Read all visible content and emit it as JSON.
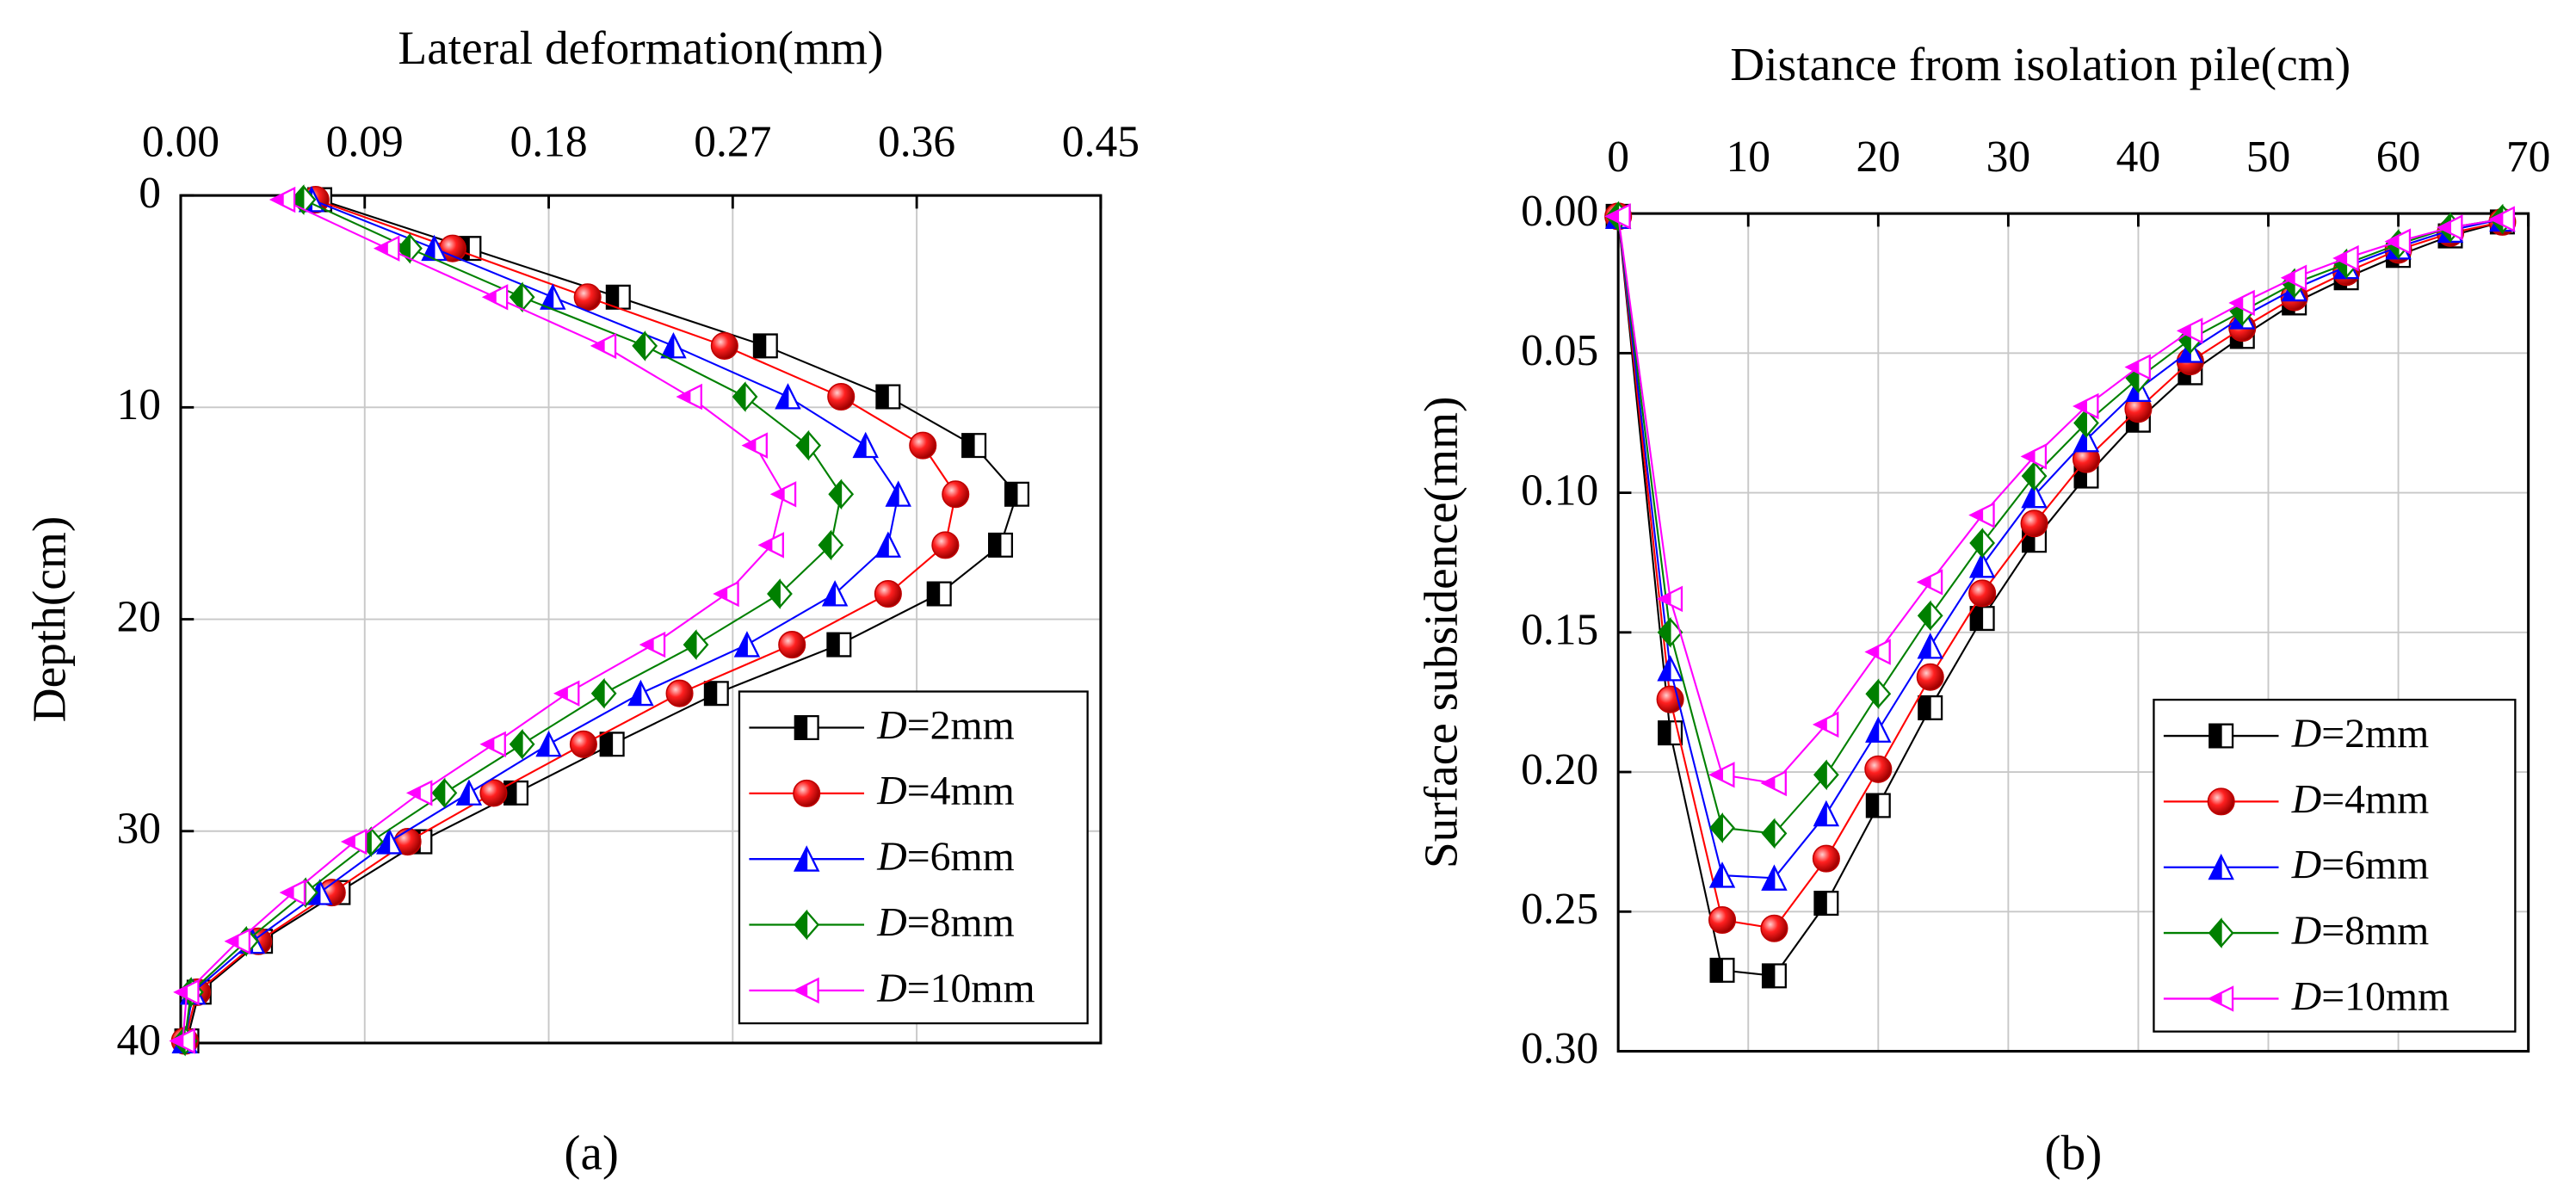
{
  "charts": [
    {
      "chart_data": {
        "type": "line",
        "caption": "(a)",
        "x_label": "Lateral deformation(mm)",
        "y_label": "Depth(cm)",
        "x_axis_position": "top",
        "y_inverted": true,
        "xlim": [
          0,
          0.45
        ],
        "xticks": [
          {
            "value": 0,
            "label": "0.00"
          },
          0.09,
          0.18,
          0.27,
          0.36,
          0.45
        ],
        "ylim": [
          0,
          40
        ],
        "yticks": [
          0,
          10,
          20,
          30,
          40
        ],
        "grid": true,
        "legend": "lower right",
        "y": [
          0.2,
          2.5,
          4.8,
          7.1,
          9.5,
          11.8,
          14.1,
          16.5,
          18.8,
          21.2,
          23.5,
          25.9,
          28.2,
          30.5,
          32.9,
          35.2,
          37.6,
          39.9
        ],
        "series": [
          {
            "name": "D=2mm",
            "color": "#000000",
            "marker": "square",
            "values": [
              0.068,
              0.141,
              0.214,
              0.286,
              0.346,
              0.388,
              0.409,
              0.401,
              0.371,
              0.322,
              0.262,
              0.211,
              0.164,
              0.117,
              0.077,
              0.039,
              0.009,
              0.003
            ]
          },
          {
            "name": "D=4mm",
            "color": "#ff0000",
            "marker": "sphere",
            "values": [
              0.066,
              0.133,
              0.199,
              0.266,
              0.323,
              0.363,
              0.379,
              0.374,
              0.346,
              0.299,
              0.244,
              0.197,
              0.153,
              0.111,
              0.074,
              0.038,
              0.008,
              0.002
            ]
          },
          {
            "name": "D=6mm",
            "color": "#0000ff",
            "marker": "triangle-up",
            "values": [
              0.064,
              0.124,
              0.182,
              0.241,
              0.297,
              0.335,
              0.351,
              0.346,
              0.32,
              0.277,
              0.225,
              0.18,
              0.141,
              0.102,
              0.068,
              0.035,
              0.006,
              0.002
            ]
          },
          {
            "name": "D=8mm",
            "color": "#008000",
            "marker": "diamond",
            "values": [
              0.06,
              0.112,
              0.167,
              0.227,
              0.276,
              0.307,
              0.323,
              0.318,
              0.293,
              0.252,
              0.207,
              0.167,
              0.129,
              0.093,
              0.061,
              0.032,
              0.005,
              0.002
            ]
          },
          {
            "name": "D=10mm",
            "color": "#ff00ff",
            "marker": "triangle-left",
            "values": [
              0.05,
              0.101,
              0.154,
              0.207,
              0.249,
              0.281,
              0.295,
              0.289,
              0.267,
              0.231,
              0.189,
              0.153,
              0.117,
              0.085,
              0.055,
              0.028,
              0.003,
              0.001
            ]
          }
        ]
      }
    },
    {
      "chart_data": {
        "type": "line",
        "caption": "(b)",
        "x_label": "Distance from isolation pile(cm)",
        "y_label": "Surface subsidence(mm)",
        "x_axis_position": "top",
        "y_inverted": true,
        "xlim": [
          0,
          70
        ],
        "xticks": [
          0,
          10,
          20,
          30,
          40,
          50,
          60,
          70
        ],
        "ylim": [
          0,
          0.3
        ],
        "yticks": [
          {
            "value": 0,
            "label": "0.00"
          },
          0.05,
          {
            "value": 0.1,
            "label": "0.10"
          },
          0.15,
          {
            "value": 0.2,
            "label": "0.20"
          },
          0.25,
          {
            "value": 0.3,
            "label": "0.30"
          }
        ],
        "grid": true,
        "legend": "lower right",
        "x": [
          0,
          4,
          8,
          12,
          16,
          20,
          24,
          28,
          32,
          36,
          40,
          44,
          48,
          52,
          56,
          60,
          64,
          68
        ],
        "series": [
          {
            "name": "D=2mm",
            "color": "#000000",
            "marker": "square",
            "values": [
              0.001,
              0.186,
              0.271,
              0.273,
              0.247,
              0.212,
              0.177,
              0.145,
              0.117,
              0.094,
              0.074,
              0.057,
              0.044,
              0.032,
              0.023,
              0.015,
              0.008,
              0.003
            ]
          },
          {
            "name": "D=4mm",
            "color": "#ff0000",
            "marker": "sphere",
            "values": [
              0.001,
              0.174,
              0.253,
              0.256,
              0.231,
              0.199,
              0.166,
              0.136,
              0.111,
              0.088,
              0.07,
              0.053,
              0.041,
              0.03,
              0.021,
              0.013,
              0.007,
              0.003
            ]
          },
          {
            "name": "D=6mm",
            "color": "#0000ff",
            "marker": "triangle-up",
            "values": [
              0.001,
              0.163,
              0.237,
              0.238,
              0.215,
              0.185,
              0.155,
              0.126,
              0.101,
              0.081,
              0.063,
              0.049,
              0.037,
              0.027,
              0.019,
              0.012,
              0.006,
              0.002
            ]
          },
          {
            "name": "D=8mm",
            "color": "#008000",
            "marker": "diamond",
            "values": [
              0.001,
              0.15,
              0.22,
              0.222,
              0.201,
              0.172,
              0.144,
              0.118,
              0.094,
              0.075,
              0.059,
              0.045,
              0.035,
              0.025,
              0.018,
              0.011,
              0.005,
              0.002
            ]
          },
          {
            "name": "D=10mm",
            "color": "#ff00ff",
            "marker": "triangle-left",
            "values": [
              0.001,
              0.138,
              0.201,
              0.204,
              0.183,
              0.157,
              0.132,
              0.108,
              0.087,
              0.069,
              0.055,
              0.042,
              0.032,
              0.023,
              0.016,
              0.01,
              0.005,
              0.002
            ]
          }
        ]
      }
    }
  ]
}
